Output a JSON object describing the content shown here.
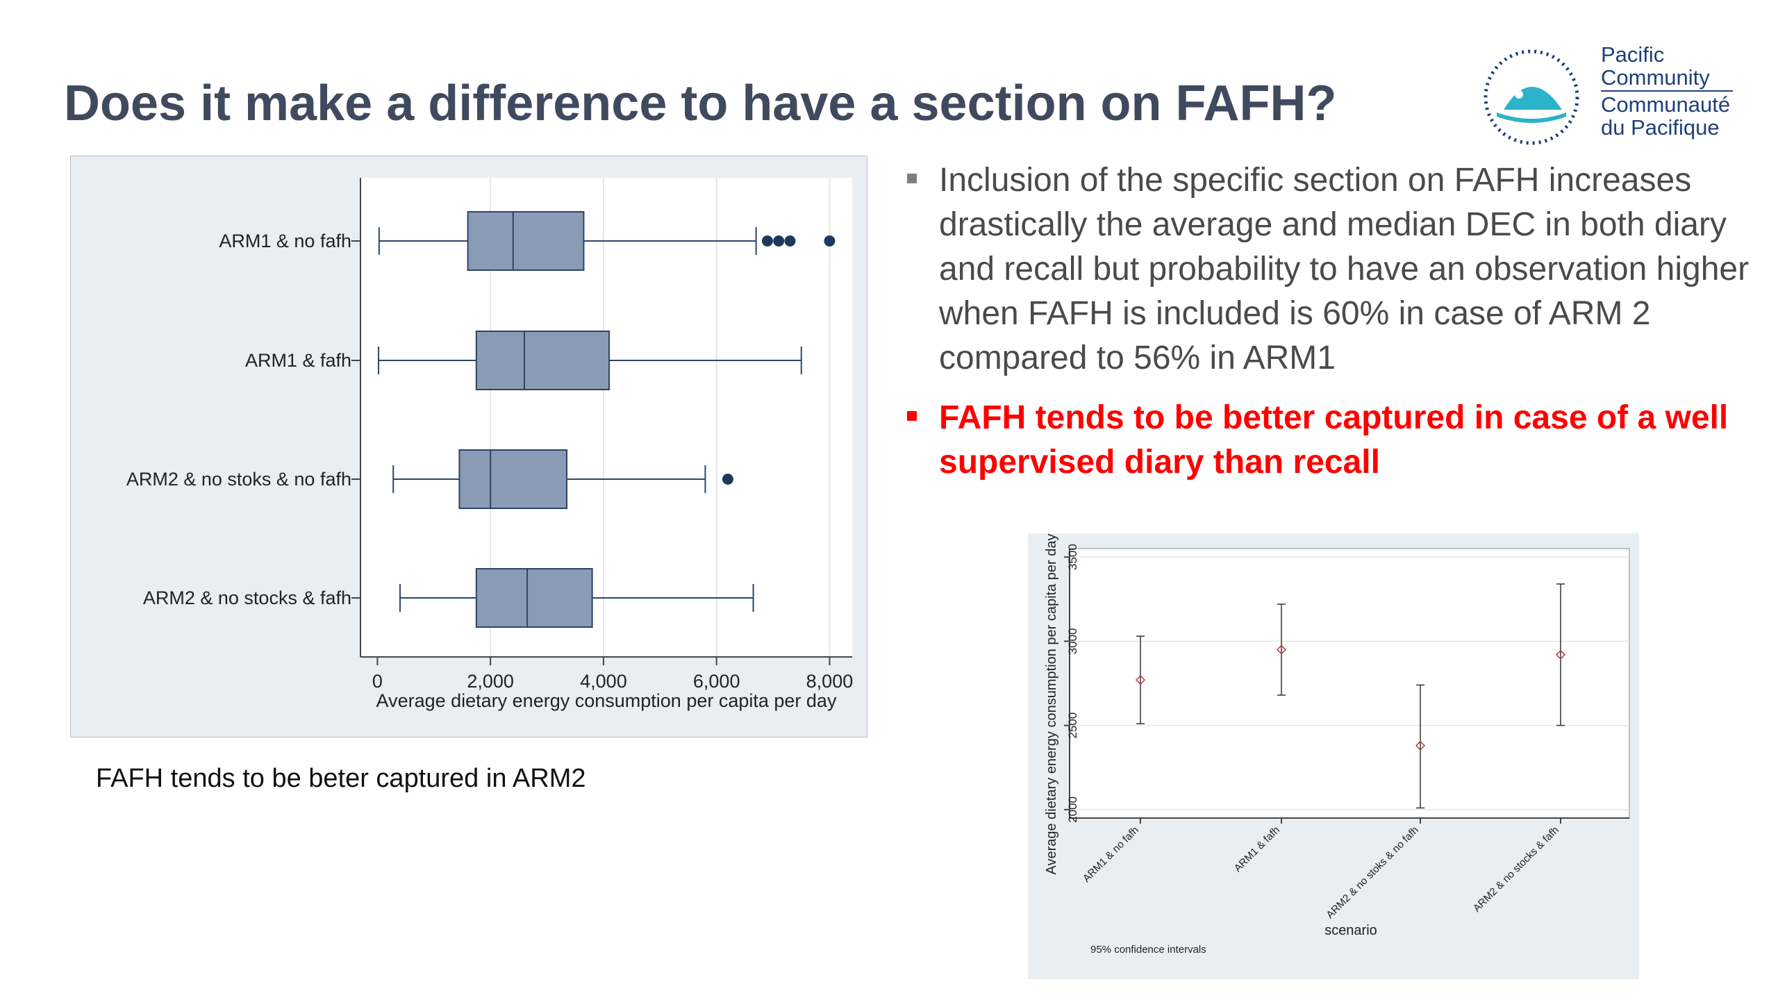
{
  "slide": {
    "title": "Does it make a difference to have a section on FAFH?",
    "caption": "FAFH tends to be beter captured in ARM2",
    "bullets": [
      "Inclusion of the specific section on FAFH increases drastically the average and median DEC in both diary and recall but probability to have an observation higher when FAFH is included is 60% in case of ARM 2 compared to 56% in ARM1",
      "FAFH tends to be better captured in case of a well supervised diary than recall"
    ]
  },
  "logo": {
    "line1": "Pacific",
    "line2": "Community",
    "line3": "Communauté",
    "line4": "du Pacifique"
  },
  "colors": {
    "title": "#3f4a5e",
    "box_fill": "#8a9bb5",
    "box_stroke": "#2c4566",
    "outlier": "#1c3a5e",
    "highlight": "#ff0000",
    "ci_marker": "#b03a3a"
  },
  "chart_data": [
    {
      "type": "box",
      "xlabel": "Average dietary energy consumption per capita per day",
      "xlim": [
        -300,
        8400
      ],
      "xticks": [
        0,
        2000,
        4000,
        6000,
        8000
      ],
      "xtick_labels": [
        "0",
        "2,000",
        "4,000",
        "6,000",
        "8,000"
      ],
      "grid": "vertical",
      "series": [
        {
          "name": "ARM1 & no fafh",
          "whisker_low": 30,
          "q1": 1600,
          "median": 2400,
          "q3": 3650,
          "whisker_high": 6700,
          "outliers": [
            6900,
            7100,
            7300,
            8000
          ]
        },
        {
          "name": "ARM1 & fafh",
          "whisker_low": 20,
          "q1": 1750,
          "median": 2600,
          "q3": 4100,
          "whisker_high": 7500,
          "outliers": []
        },
        {
          "name": "ARM2 & no stoks & no fafh",
          "whisker_low": 280,
          "q1": 1450,
          "median": 2000,
          "q3": 3350,
          "whisker_high": 5800,
          "outliers": [
            6200
          ]
        },
        {
          "name": "ARM2 & no stocks & fafh",
          "whisker_low": 400,
          "q1": 1750,
          "median": 2650,
          "q3": 3800,
          "whisker_high": 6650,
          "outliers": []
        }
      ]
    },
    {
      "type": "errorbar",
      "ylabel": "Average dietary energy consumption per capita per day",
      "xlabel": "scenario",
      "note": "95% confidence intervals",
      "ylim": [
        1950,
        3550
      ],
      "yticks": [
        2000,
        2500,
        3000,
        3500
      ],
      "ytick_labels": [
        "2000",
        "2500",
        "3000",
        "3500"
      ],
      "grid": "horizontal",
      "categories": [
        "ARM1 & no fafh",
        "ARM1 & fafh",
        "ARM2 & no stoks & no fafh",
        "ARM2 & no stocks & fafh"
      ],
      "points": [
        {
          "mean": 2770,
          "low": 2510,
          "high": 3030
        },
        {
          "mean": 2950,
          "low": 2680,
          "high": 3220
        },
        {
          "mean": 2380,
          "low": 2010,
          "high": 2740
        },
        {
          "mean": 2920,
          "low": 2500,
          "high": 3340
        }
      ]
    }
  ]
}
